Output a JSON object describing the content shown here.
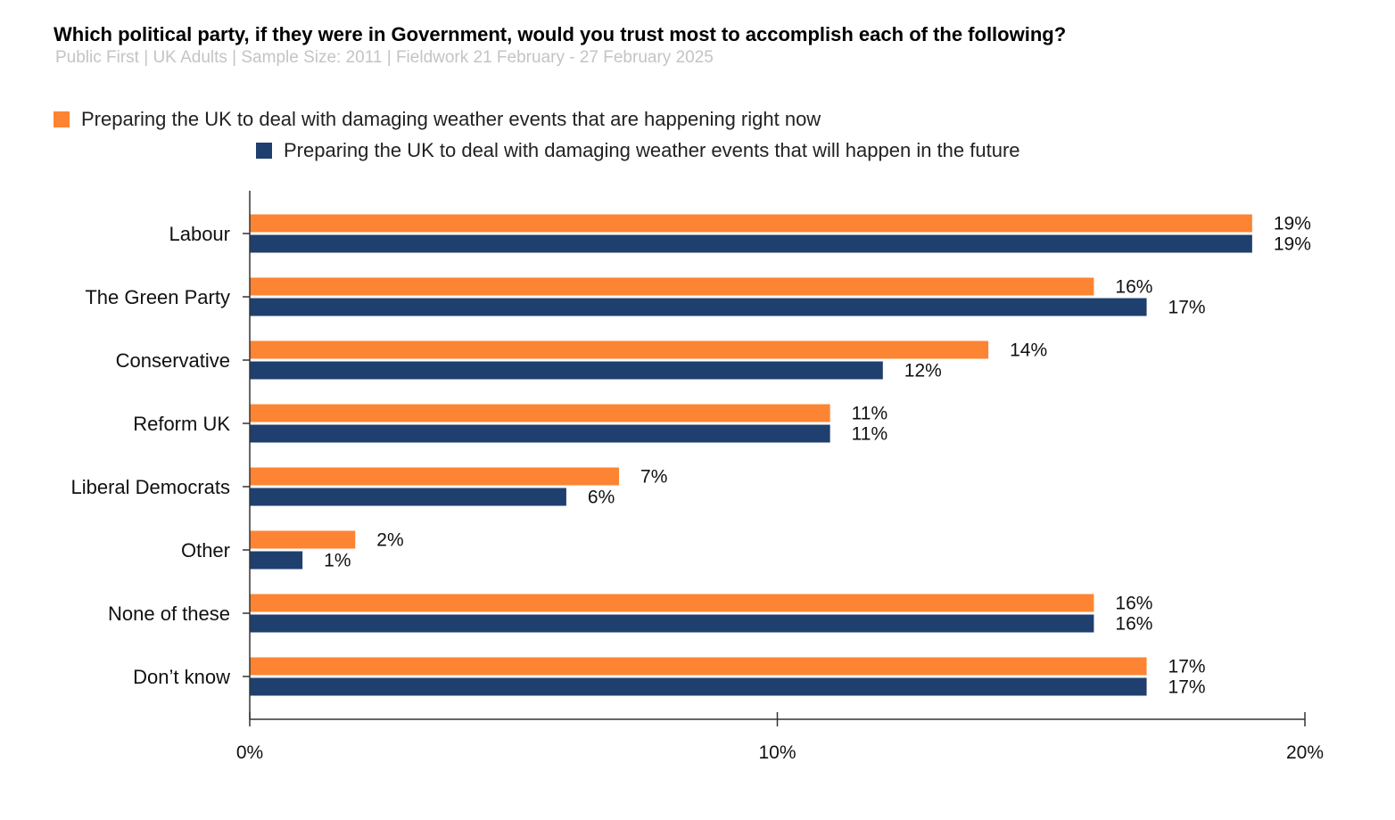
{
  "chart_data": {
    "type": "bar",
    "orientation": "horizontal",
    "title": "Which political party, if they were in Government, would you trust most to accomplish each of the following?",
    "subtitle": "Public First | UK Adults | Sample Size: 2011 | Fieldwork 21 February - 27 February 2025",
    "categories": [
      "Labour",
      "The Green Party",
      "Conservative",
      "Reform UK",
      "Liberal Democrats",
      "Other",
      "None of these",
      "Don’t know"
    ],
    "series": [
      {
        "name": "Preparing the UK to deal with damaging weather events that are happening right now",
        "color": "#fd8432",
        "values": [
          19,
          16,
          14,
          11,
          7,
          2,
          16,
          17
        ],
        "labels": [
          "19%",
          "16%",
          "14%",
          "11%",
          "7%",
          "2%",
          "16%",
          "17%"
        ]
      },
      {
        "name": "Preparing the UK to deal with damaging weather events that will happen in the future",
        "color": "#1f3f6e",
        "values": [
          19,
          17,
          12,
          11,
          6,
          1,
          16,
          17
        ],
        "labels": [
          "19%",
          "17%",
          "12%",
          "11%",
          "6%",
          "1%",
          "16%",
          "17%"
        ]
      }
    ],
    "xlim": [
      0,
      20
    ],
    "xticks": [
      0,
      10,
      20
    ],
    "xtick_labels": [
      "0%",
      "10%",
      "20%"
    ],
    "xlabel": "",
    "ylabel": "",
    "grid": false,
    "legend_position": "top"
  }
}
